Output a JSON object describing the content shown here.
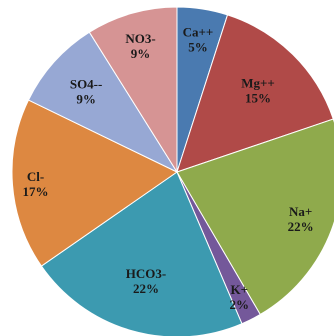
{
  "chart_data": {
    "type": "pie",
    "title": "",
    "slices": [
      {
        "name": "Ca++",
        "value": 5,
        "label": "5%",
        "color": "#4a7ab0"
      },
      {
        "name": "Mg++",
        "value": 15,
        "label": "15%",
        "color": "#b04a48"
      },
      {
        "name": "Na+",
        "value": 22,
        "label": "22%",
        "color": "#8faa4c"
      },
      {
        "name": "K+",
        "value": 2,
        "label": "2%",
        "color": "#74589a"
      },
      {
        "name": "HCO3-",
        "value": 22,
        "label": "22%",
        "color": "#3c9ab0"
      },
      {
        "name": "Cl-",
        "value": 17,
        "label": "17%",
        "color": "#dd8841"
      },
      {
        "name": "SO4--",
        "value": 9,
        "label": "9%",
        "color": "#97a8d4"
      },
      {
        "name": "NO3-",
        "value": 9,
        "label": "9%",
        "color": "#d69494"
      }
    ],
    "start_angle_deg": 0,
    "direction": "clockwise",
    "legend": "none"
  }
}
